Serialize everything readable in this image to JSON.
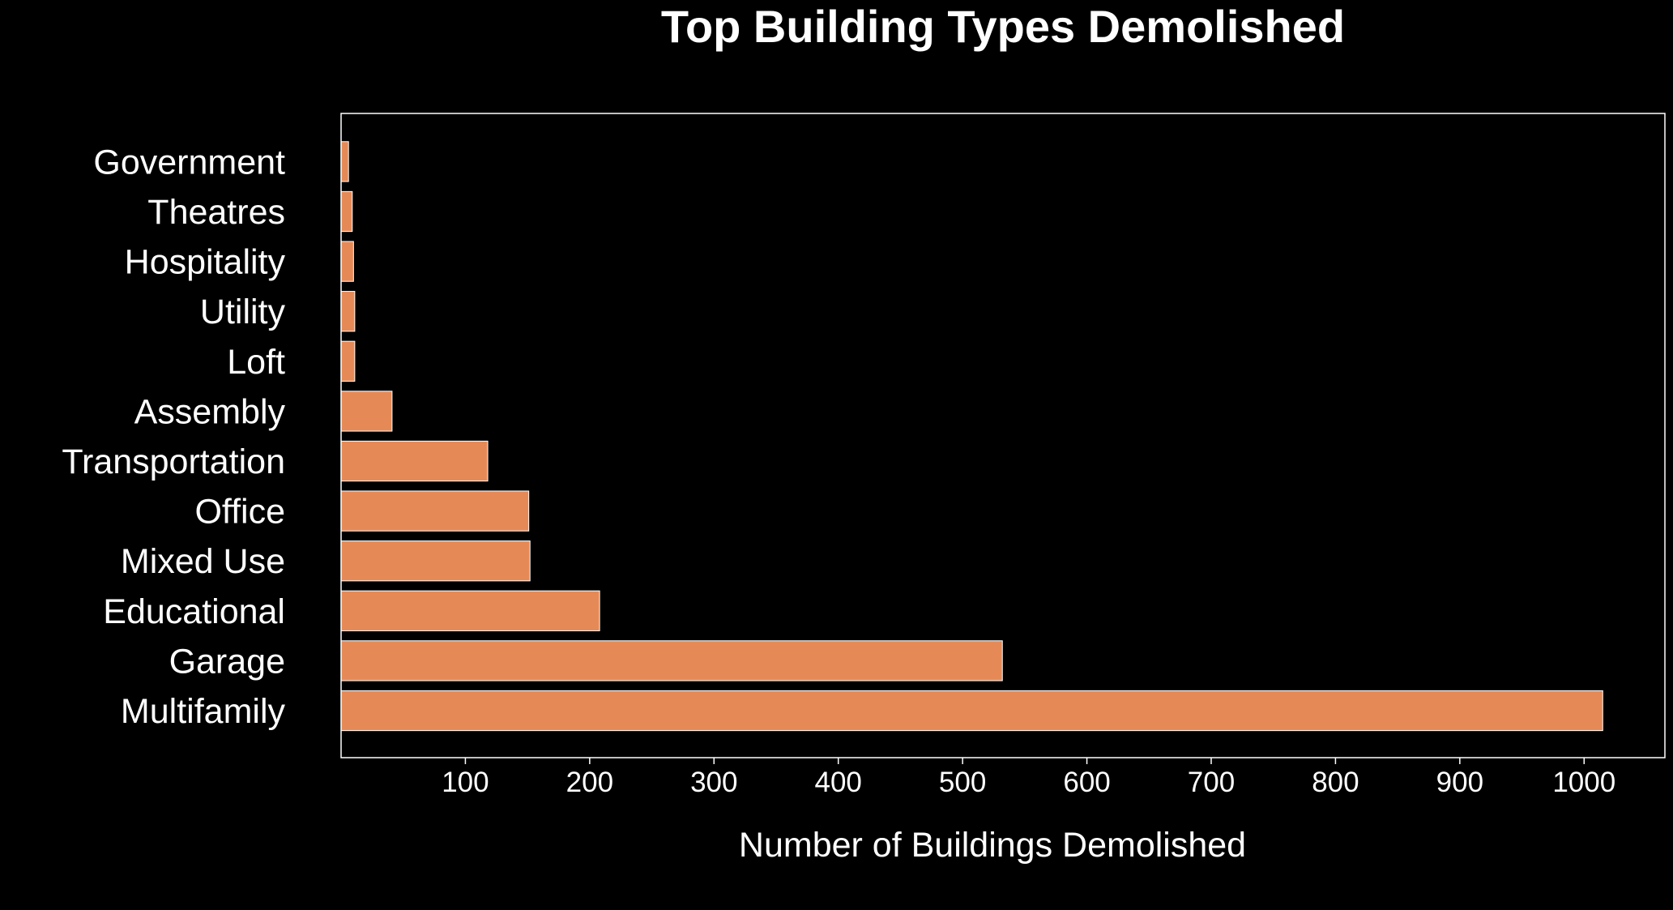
{
  "chart_data": {
    "type": "bar",
    "orientation": "horizontal",
    "title": "Top Building Types Demolished",
    "xlabel": "Number of Buildings Demolished",
    "ylabel": "",
    "categories": [
      "Multifamily",
      "Garage",
      "Educational",
      "Mixed Use",
      "Office",
      "Transportation",
      "Assembly",
      "Loft",
      "Utility",
      "Hospitality",
      "Theatres",
      "Government"
    ],
    "values": [
      1015,
      532,
      208,
      152,
      151,
      118,
      41,
      11,
      11,
      10,
      9,
      6
    ],
    "xlim": [
      0,
      1065
    ],
    "xticks": [
      100,
      200,
      300,
      400,
      500,
      600,
      700,
      800,
      900,
      1000
    ],
    "grid": false,
    "legend": "none",
    "bar_color": "#e58a57",
    "bar_edge_color": "#ffffff",
    "background_color": "#000000",
    "text_color": "#ffffff"
  }
}
